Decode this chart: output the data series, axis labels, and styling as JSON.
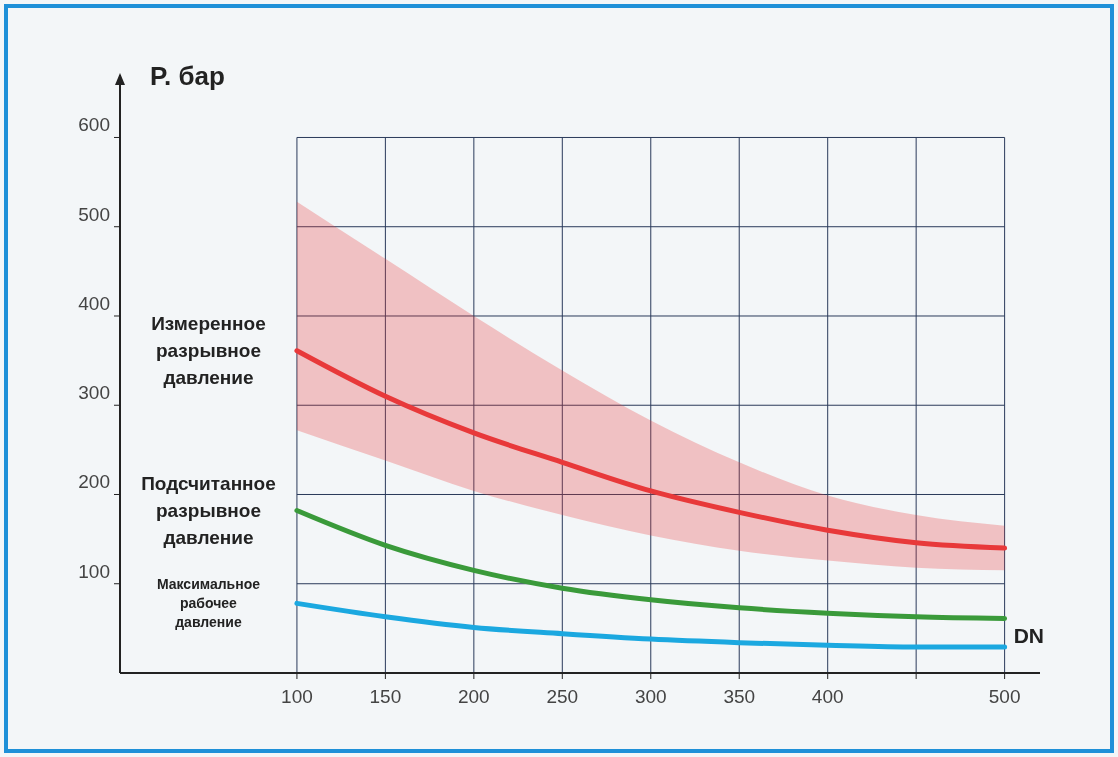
{
  "chart_data": {
    "type": "line",
    "ylabel": "P. бар",
    "xlabel": "DN",
    "x": [
      100,
      150,
      200,
      250,
      300,
      350,
      400,
      450,
      500
    ],
    "series": [
      {
        "name": "Измеренное разрывное давление",
        "color": "#e8393a",
        "values": [
          361,
          310,
          269,
          236,
          204,
          180,
          160,
          146,
          140
        ],
        "lower": [
          272,
          238,
          204,
          177,
          154,
          137,
          126,
          118,
          115
        ],
        "upper": [
          528,
          464,
          400,
          339,
          283,
          236,
          199,
          177,
          165
        ]
      },
      {
        "name": "Подсчитанное разрывное давление",
        "color": "#3a9a3a",
        "values": [
          182,
          143,
          115,
          95,
          82,
          73,
          67,
          63,
          61
        ]
      },
      {
        "name": "Максимальное рабочее давление",
        "color": "#1ba8e0",
        "values": [
          78,
          63,
          51,
          44,
          38,
          34,
          31,
          29,
          29
        ]
      }
    ],
    "xlim": [
      0,
      520
    ],
    "ylim": [
      0,
      670
    ],
    "xticks": [
      100,
      150,
      200,
      250,
      300,
      350,
      400,
      {
        "value": 450,
        "label": null
      },
      500
    ],
    "yticks": [
      100,
      200,
      300,
      400,
      500,
      600
    ],
    "grid": true,
    "marker": "none",
    "line_style": "solid"
  }
}
